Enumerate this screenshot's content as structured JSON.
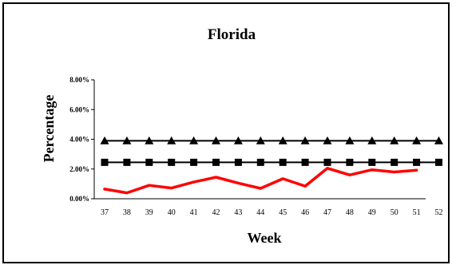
{
  "chart_data": {
    "type": "line",
    "title": "Florida",
    "xlabel": "Week",
    "ylabel": "Percentage",
    "x": [
      37,
      38,
      39,
      40,
      41,
      42,
      43,
      44,
      45,
      46,
      47,
      48,
      49,
      50,
      51,
      52
    ],
    "x_tick_labels": [
      "37",
      "38",
      "39",
      "40",
      "41",
      "42",
      "43",
      "44",
      "45",
      "46",
      "47",
      "48",
      "49",
      "50",
      "51",
      "52"
    ],
    "ylim": [
      0,
      8
    ],
    "y_unit": "%",
    "y_tick_labels": [
      "0.00%",
      "2.00%",
      "4.00%",
      "6.00%",
      "8.00%"
    ],
    "y_tick_values": [
      0,
      2,
      4,
      6,
      8
    ],
    "grid": false,
    "legend": "none",
    "series": [
      {
        "marker": "triangle",
        "color": "#000000",
        "values": [
          3.9,
          3.9,
          3.9,
          3.9,
          3.9,
          3.9,
          3.9,
          3.9,
          3.9,
          3.9,
          3.9,
          3.9,
          3.9,
          3.9,
          3.9,
          3.9
        ]
      },
      {
        "marker": "square",
        "color": "#000000",
        "values": [
          2.45,
          2.45,
          2.45,
          2.45,
          2.45,
          2.45,
          2.45,
          2.45,
          2.45,
          2.45,
          2.45,
          2.45,
          2.45,
          2.45,
          2.45,
          2.45
        ]
      },
      {
        "marker": "none",
        "color": "#ff0000",
        "values": [
          0.65,
          0.4,
          0.9,
          0.72,
          1.12,
          1.45,
          1.05,
          0.7,
          1.35,
          0.85,
          2.05,
          1.6,
          1.95,
          1.8,
          1.92,
          null
        ]
      }
    ]
  }
}
